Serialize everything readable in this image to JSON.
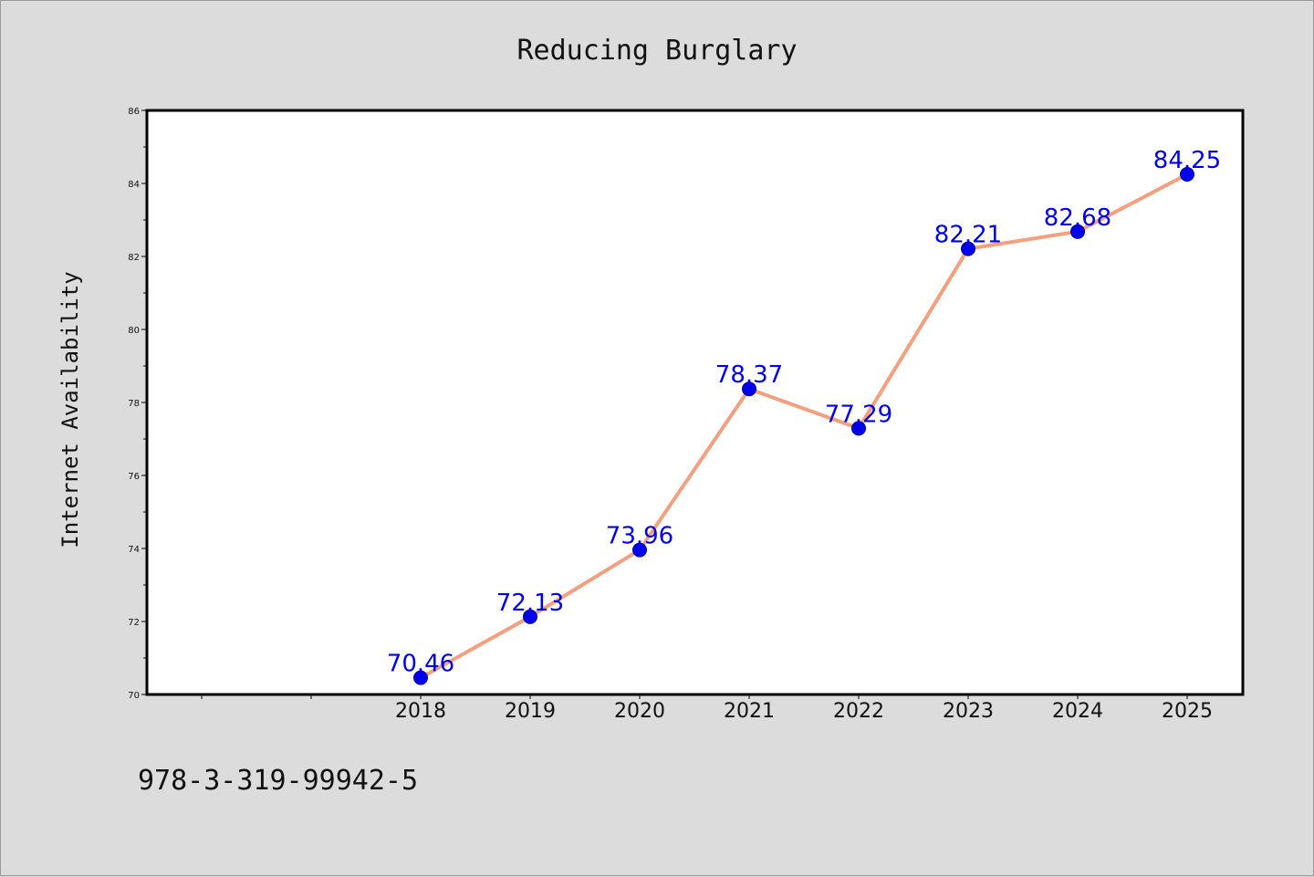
{
  "chart_data": {
    "type": "line",
    "title": "Reducing Burglary",
    "xlabel": "",
    "ylabel": "Internet Availability",
    "categories": [
      "2018",
      "2019",
      "2020",
      "2021",
      "2022",
      "2023",
      "2024",
      "2025"
    ],
    "values": [
      70.46,
      72.13,
      73.96,
      78.37,
      77.29,
      82.21,
      82.68,
      84.25
    ],
    "value_labels": [
      "70.46",
      "72.13",
      "73.96",
      "78.37",
      "77.29",
      "82.21",
      "82.68",
      "84.25"
    ],
    "ylim": [
      70,
      86
    ],
    "yticks": [
      "70",
      "72",
      "74",
      "76",
      "78",
      "80",
      "82",
      "84",
      "86"
    ],
    "grid": false,
    "line_color": "#f4a07f",
    "marker_color": "#0000ee",
    "label_color": "#0000ee"
  },
  "footer": {
    "isbn": "978-3-319-99942-5"
  }
}
